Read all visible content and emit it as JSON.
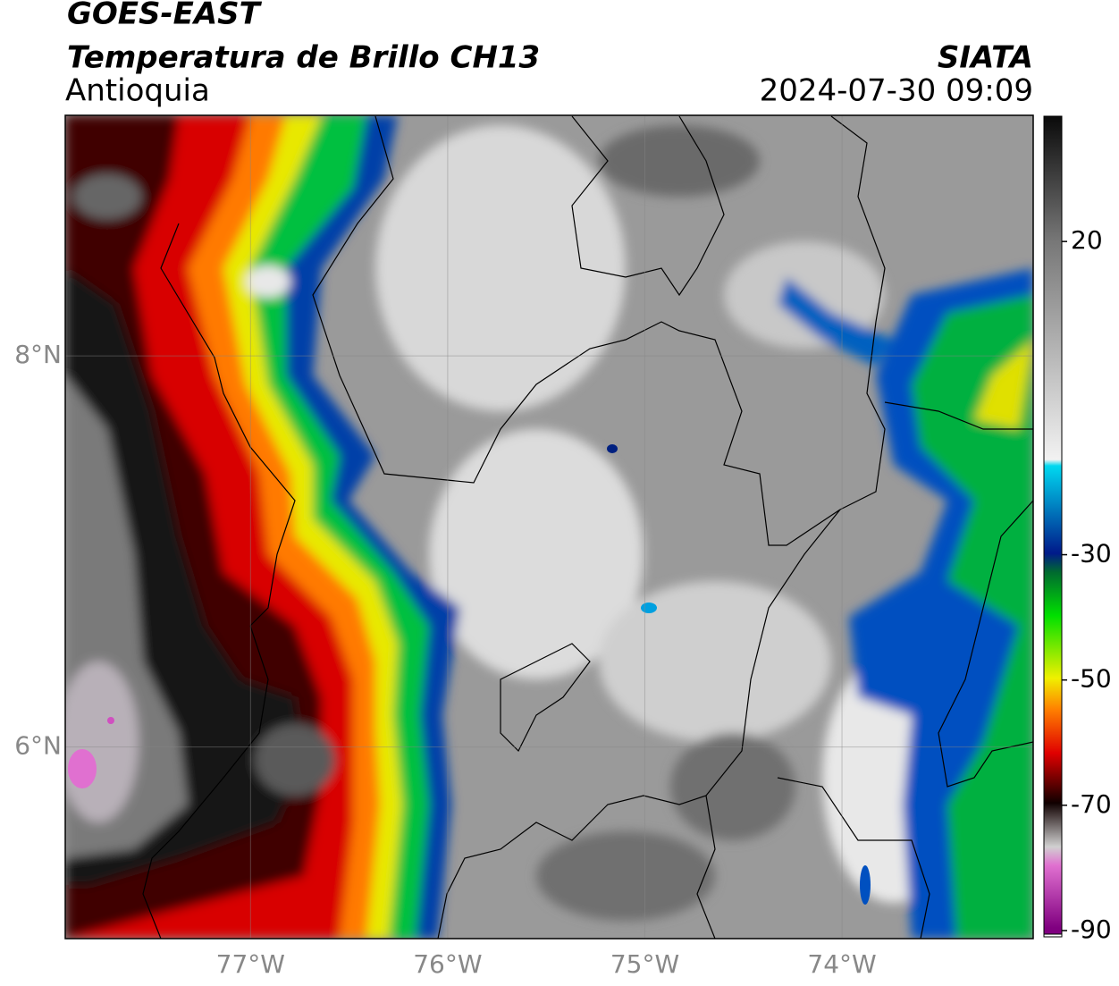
{
  "map": {
    "title": "GOES-EAST",
    "subtitle": "Temperatura de Brillo CH13",
    "region": "Antioquia",
    "source": "SIATA",
    "timestamp": "2024-07-30 09:09",
    "xlim": [
      -77.94,
      -73.03
    ],
    "ylim": [
      5.02,
      9.23
    ],
    "xticks": [
      {
        "value": -77,
        "label": "77°W"
      },
      {
        "value": -76,
        "label": "76°W"
      },
      {
        "value": -75,
        "label": "75°W"
      },
      {
        "value": -74,
        "label": "74°W"
      }
    ],
    "yticks": [
      {
        "value": 6,
        "label": "6°N"
      },
      {
        "value": 8,
        "label": "8°N"
      }
    ],
    "grid": true,
    "colorbar": {
      "lim": [
        -91,
        40
      ],
      "ticks": [
        20,
        -30,
        -50,
        -70,
        -90
      ],
      "colormap": [
        [
          40,
          "#0a0a0a"
        ],
        [
          20,
          "#777777"
        ],
        [
          -15,
          "#f2f2f2"
        ],
        [
          -16,
          "#00d8f0"
        ],
        [
          -30,
          "#001a8a"
        ],
        [
          -33,
          "#006a30"
        ],
        [
          -40,
          "#00e000"
        ],
        [
          -50,
          "#f0f000"
        ],
        [
          -55,
          "#ff8000"
        ],
        [
          -62,
          "#e00000"
        ],
        [
          -70,
          "#100000"
        ],
        [
          -77,
          "#d0d0d0"
        ],
        [
          -80,
          "#e070d0"
        ],
        [
          -90,
          "#800080"
        ]
      ]
    }
  }
}
